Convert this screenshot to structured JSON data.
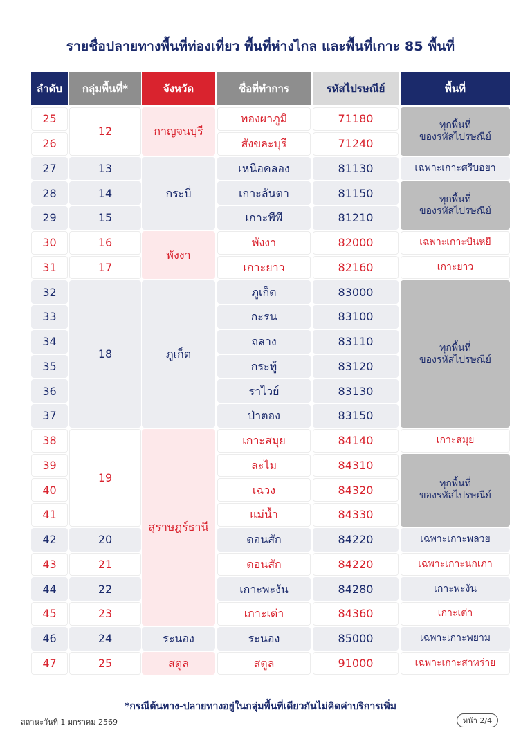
{
  "title": "รายชื่อปลายทางพื้นที่ท่องเที่ยว พื้นที่ห่างไกล และพื้นที่เกาะ 85 พื้นที่",
  "headers": {
    "seq": "ลำดับ",
    "group": "กลุ่มพื้นที่*",
    "province": "จังหวัด",
    "place": "ชื่อที่ทำการ",
    "postcode": "รหัสไปรษณีย์",
    "area": "พื้นที่"
  },
  "header_colors": {
    "seq": "#1b2a6b",
    "group": "#8e8e8e",
    "province": "#d9232e",
    "place": "#8e8e8e",
    "postcode": "#d9d9d9",
    "area": "#1b2a6b"
  },
  "rows": [
    {
      "seq": "25",
      "place": "ทองผาภูมิ",
      "postcode": "71180"
    },
    {
      "seq": "26",
      "place": "สังขละบุรี",
      "postcode": "71240"
    },
    {
      "seq": "27",
      "place": "เหนือคลอง",
      "postcode": "81130"
    },
    {
      "seq": "28",
      "place": "เกาะลันตา",
      "postcode": "81150"
    },
    {
      "seq": "29",
      "place": "เกาะพีพี",
      "postcode": "81210"
    },
    {
      "seq": "30",
      "place": "พังงา",
      "postcode": "82000"
    },
    {
      "seq": "31",
      "place": "เกาะยาว",
      "postcode": "82160"
    },
    {
      "seq": "32",
      "place": "ภูเก็ต",
      "postcode": "83000"
    },
    {
      "seq": "33",
      "place": "กะรน",
      "postcode": "83100"
    },
    {
      "seq": "34",
      "place": "ถลาง",
      "postcode": "83110"
    },
    {
      "seq": "35",
      "place": "กระทู้",
      "postcode": "83120"
    },
    {
      "seq": "36",
      "place": "ราไวย์",
      "postcode": "83130"
    },
    {
      "seq": "37",
      "place": "ป่าตอง",
      "postcode": "83150"
    },
    {
      "seq": "38",
      "place": "เกาะสมุย",
      "postcode": "84140"
    },
    {
      "seq": "39",
      "place": "ละไม",
      "postcode": "84310"
    },
    {
      "seq": "40",
      "place": "เฉวง",
      "postcode": "84320"
    },
    {
      "seq": "41",
      "place": "แม่น้ำ",
      "postcode": "84330"
    },
    {
      "seq": "42",
      "place": "ดอนสัก",
      "postcode": "84220"
    },
    {
      "seq": "43",
      "place": "ดอนสัก",
      "postcode": "84220"
    },
    {
      "seq": "44",
      "place": "เกาะพะงัน",
      "postcode": "84280"
    },
    {
      "seq": "45",
      "place": "เกาะเต่า",
      "postcode": "84360"
    },
    {
      "seq": "46",
      "place": "ระนอง",
      "postcode": "85000"
    },
    {
      "seq": "47",
      "place": "สตูล",
      "postcode": "91000"
    }
  ],
  "groups": [
    {
      "text": "12",
      "start": 0,
      "span": 2
    },
    {
      "text": "13",
      "start": 2,
      "span": 1
    },
    {
      "text": "14",
      "start": 3,
      "span": 1
    },
    {
      "text": "15",
      "start": 4,
      "span": 1
    },
    {
      "text": "16",
      "start": 5,
      "span": 1
    },
    {
      "text": "17",
      "start": 6,
      "span": 1
    },
    {
      "text": "18",
      "start": 7,
      "span": 6
    },
    {
      "text": "19",
      "start": 13,
      "span": 4
    },
    {
      "text": "20",
      "start": 17,
      "span": 1
    },
    {
      "text": "21",
      "start": 18,
      "span": 1
    },
    {
      "text": "22",
      "start": 19,
      "span": 1
    },
    {
      "text": "23",
      "start": 20,
      "span": 1
    },
    {
      "text": "24",
      "start": 21,
      "span": 1
    },
    {
      "text": "25",
      "start": 22,
      "span": 1
    }
  ],
  "provinces": [
    {
      "text": "กาญจนบุรี",
      "start": 0,
      "span": 2
    },
    {
      "text": "กระบี่",
      "start": 2,
      "span": 3
    },
    {
      "text": "พังงา",
      "start": 5,
      "span": 2
    },
    {
      "text": "ภูเก็ต",
      "start": 7,
      "span": 6
    },
    {
      "text": "สุราษฎร์ธานี",
      "start": 13,
      "span": 8
    },
    {
      "text": "ระนอง",
      "start": 21,
      "span": 1
    },
    {
      "text": "สตูล",
      "start": 22,
      "span": 1
    }
  ],
  "areas": [
    {
      "text": "ทุกพื้นที่\nของรหัสไปรษณีย์",
      "start": 0,
      "span": 2
    },
    {
      "text": "เฉพาะเกาะศรีบอยา",
      "start": 2,
      "span": 1
    },
    {
      "text": "ทุกพื้นที่\nของรหัสไปรษณีย์",
      "start": 3,
      "span": 2
    },
    {
      "text": "เฉพาะเกาะปันหยี",
      "start": 5,
      "span": 1
    },
    {
      "text": "เกาะยาว",
      "start": 6,
      "span": 1
    },
    {
      "text": "ทุกพื้นที่\nของรหัสไปรษณีย์",
      "start": 7,
      "span": 6
    },
    {
      "text": "เกาะสมุย",
      "start": 13,
      "span": 1
    },
    {
      "text": "ทุกพื้นที่\nของรหัสไปรษณีย์",
      "start": 14,
      "span": 3
    },
    {
      "text": "เฉพาะเกาะพลวย",
      "start": 17,
      "span": 1
    },
    {
      "text": "เฉพาะเกาะนกเภา",
      "start": 18,
      "span": 1
    },
    {
      "text": "เกาะพะงัน",
      "start": 19,
      "span": 1
    },
    {
      "text": "เกาะเต่า",
      "start": 20,
      "span": 1
    },
    {
      "text": "เฉพาะเกาะพยาม",
      "start": 21,
      "span": 1
    },
    {
      "text": "เฉพาะเกาะสาหร่าย",
      "start": 22,
      "span": 1
    }
  ],
  "footnote": "*กรณีต้นทาง-ปลายทางอยู่ในกลุ่มพื้นที่เดียวกันไม่คิดค่าบริการเพิ่ม",
  "status": "สถานะวันที่ 1 มกราคม 2569",
  "page_indicator": "หน้า 2/4"
}
